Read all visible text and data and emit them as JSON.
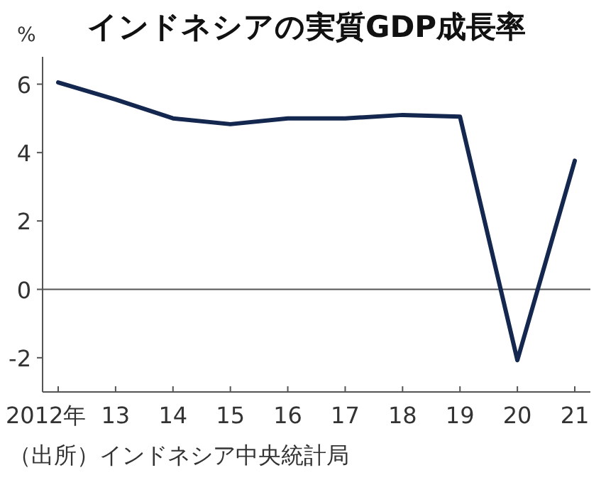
{
  "chart_data": {
    "type": "line",
    "title": "インドネシアの実質GDP成長率",
    "ylabel": "%",
    "categories": [
      "2012年",
      "13",
      "14",
      "15",
      "16",
      "17",
      "18",
      "19",
      "20",
      "21"
    ],
    "series": [
      {
        "color": "#13274f",
        "values": [
          6.05,
          5.55,
          5.0,
          4.83,
          5.0,
          5.0,
          5.1,
          5.05,
          -2.07,
          3.76
        ]
      }
    ],
    "ylim": [
      -3,
      6.8
    ],
    "yticks": [
      -2,
      0,
      2,
      4,
      6
    ],
    "ref_lines": [
      {
        "axis": "y",
        "value": 0,
        "color": "#555555"
      }
    ],
    "annotations": [
      "（出所）インドネシア中央統計局"
    ],
    "grid": false,
    "marker": "none",
    "line_style": "solid"
  }
}
